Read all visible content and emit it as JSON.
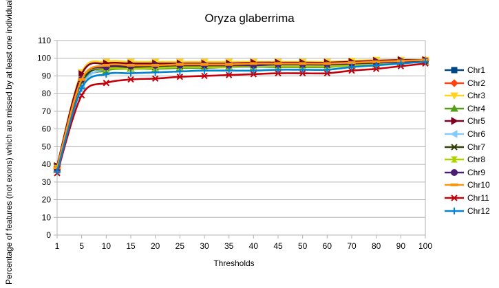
{
  "chart_data": {
    "type": "line",
    "title": "Oryza glaberrima",
    "xlabel": "Thresholds",
    "ylabel": "Percentage of features (not exons) which are missed by at least one individual",
    "categories": [
      "1",
      "5",
      "10",
      "15",
      "20",
      "25",
      "30",
      "35",
      "40",
      "45",
      "50",
      "60",
      "70",
      "80",
      "90",
      "100"
    ],
    "ylim": [
      0,
      110
    ],
    "yticks": [
      0,
      10,
      20,
      30,
      40,
      50,
      60,
      70,
      80,
      90,
      100,
      110
    ],
    "grid": true,
    "legend_position": "right",
    "series": [
      {
        "name": "Chr1",
        "color": "#004586",
        "marker": "square",
        "values": [
          37,
          86,
          95,
          95,
          95,
          95.5,
          96,
          96,
          96,
          96.5,
          96.5,
          96.5,
          97,
          97.5,
          98,
          98.5
        ]
      },
      {
        "name": "Chr2",
        "color": "#ff420e",
        "marker": "diamond",
        "values": [
          38,
          88,
          95,
          95,
          96,
          96,
          96.5,
          96.5,
          96.5,
          97,
          97,
          97,
          97.5,
          98,
          98.5,
          99
        ]
      },
      {
        "name": "Chr3",
        "color": "#ffd320",
        "marker": "triangle-down",
        "values": [
          39,
          92,
          98,
          98,
          98,
          98,
          98,
          98,
          98,
          98,
          98,
          98,
          98.5,
          99,
          99,
          99
        ]
      },
      {
        "name": "Chr4",
        "color": "#579d1c",
        "marker": "triangle-up",
        "values": [
          37,
          85,
          93,
          94,
          94,
          94.5,
          94.5,
          95,
          95,
          95,
          95,
          95,
          96,
          96.5,
          97.5,
          98
        ]
      },
      {
        "name": "Chr5",
        "color": "#7e0021",
        "marker": "triangle-right",
        "values": [
          39,
          91,
          97,
          97,
          97,
          97,
          97,
          97,
          97.5,
          97.5,
          97.5,
          97.5,
          98,
          98.5,
          99,
          99
        ]
      },
      {
        "name": "Chr6",
        "color": "#83caff",
        "marker": "triangle-left",
        "values": [
          36,
          84,
          94,
          94,
          94.5,
          95,
          95,
          95,
          95,
          95.5,
          95.5,
          95.5,
          96,
          96.5,
          97.5,
          98
        ]
      },
      {
        "name": "Chr7",
        "color": "#314004",
        "marker": "x",
        "values": [
          37,
          87,
          94,
          95,
          95,
          95.5,
          95.5,
          96,
          96,
          96,
          96,
          96,
          96.5,
          97,
          98,
          98.5
        ]
      },
      {
        "name": "Chr8",
        "color": "#aecf00",
        "marker": "hourglass",
        "values": [
          38,
          88,
          94,
          94,
          94.5,
          95,
          95,
          95,
          95.5,
          95.5,
          95.5,
          95.5,
          96,
          97,
          97.5,
          98
        ]
      },
      {
        "name": "Chr9",
        "color": "#4b1f6f",
        "marker": "circle",
        "values": [
          37,
          88,
          95,
          95.5,
          96,
          96,
          96,
          96,
          96,
          96.5,
          96.5,
          96.5,
          97,
          97.5,
          98,
          98.5
        ]
      },
      {
        "name": "Chr10",
        "color": "#ff950e",
        "marker": "dash",
        "values": [
          38,
          88,
          96,
          96,
          96,
          96.5,
          96.5,
          96.5,
          97,
          97,
          97,
          97,
          97.5,
          98,
          98.5,
          99
        ]
      },
      {
        "name": "Chr11",
        "color": "#c5000b",
        "marker": "x",
        "values": [
          35,
          79,
          86,
          88,
          88.5,
          89.5,
          90,
          90.5,
          91,
          91.5,
          91.5,
          91.5,
          93,
          94,
          95.5,
          97
        ]
      },
      {
        "name": "Chr12",
        "color": "#0084d1",
        "marker": "plus",
        "values": [
          36,
          83,
          91,
          91.5,
          92,
          92.5,
          93,
          93,
          93,
          93.5,
          93.5,
          93.5,
          95,
          96,
          97,
          98
        ]
      }
    ]
  }
}
